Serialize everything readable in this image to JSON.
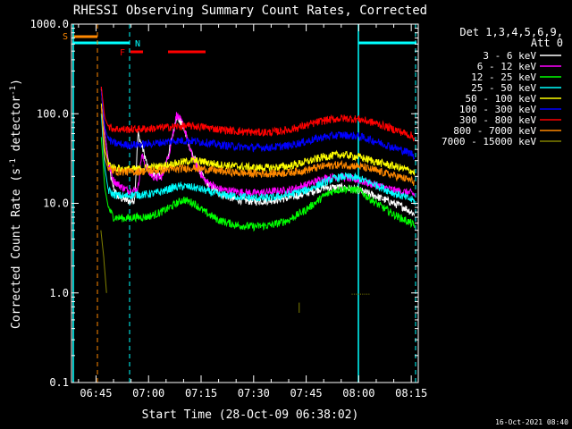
{
  "chart_data": {
    "type": "line",
    "title": "RHESSI Observing Summary Count Rates, Corrected",
    "xlabel": "Start Time (28-Oct-09 06:38:02)",
    "ylabel": "Corrected Count Rate (s",
    "ylabel_sup": "-1",
    "ylabel_mid": " detector",
    "ylabel_sup2": "-1",
    "ylabel_end": ")",
    "y_scale": "log",
    "ylim": [
      0.1,
      1000
    ],
    "xlim_minutes": [
      38.0,
      137.0
    ],
    "grid": false,
    "legend_position": "top-right",
    "legend_title": [
      "Det 1,3,4,5,6,9,",
      "Att 0"
    ],
    "y_ticks": [
      {
        "value": 0.1,
        "label": "0.1"
      },
      {
        "value": 1,
        "label": "1.0"
      },
      {
        "value": 10,
        "label": "10.0"
      },
      {
        "value": 100,
        "label": "100.0"
      },
      {
        "value": 1000,
        "label": "1000.0"
      }
    ],
    "x_ticks": [
      {
        "minute": 45,
        "label": "06:45"
      },
      {
        "minute": 60,
        "label": "07:00"
      },
      {
        "minute": 75,
        "label": "07:15"
      },
      {
        "minute": 90,
        "label": "07:30"
      },
      {
        "minute": 105,
        "label": "07:45"
      },
      {
        "minute": 120,
        "label": "08:00"
      },
      {
        "minute": 135,
        "label": "08:15"
      }
    ],
    "series": [
      {
        "name": "3 - 6 keV",
        "color": "#ffffff",
        "x": [
          46.5,
          47.5,
          48.5,
          49.5,
          51,
          53,
          55,
          56,
          57,
          58,
          59,
          60,
          62,
          64,
          66,
          68,
          70,
          72,
          74,
          76,
          80,
          85,
          90,
          95,
          100,
          105,
          110,
          115,
          120,
          125,
          130,
          133,
          135,
          136
        ],
        "y": [
          190,
          60,
          30,
          17,
          12,
          11,
          10.5,
          11,
          60,
          45,
          33,
          23,
          20,
          21,
          40,
          95,
          70,
          40,
          26,
          18,
          13,
          11,
          10.5,
          10.8,
          11.5,
          13,
          15,
          15,
          14,
          12,
          10,
          9,
          8,
          7.5
        ]
      },
      {
        "name": "6 - 12 keV",
        "color": "#ff00ff",
        "x": [
          46.5,
          47.5,
          48.5,
          50,
          52,
          54,
          56,
          57,
          58,
          60,
          62,
          64,
          66,
          68,
          70,
          72,
          74,
          76,
          80,
          85,
          90,
          95,
          100,
          105,
          110,
          115,
          120,
          125,
          130,
          135,
          136
        ],
        "y": [
          200,
          60,
          28,
          18,
          15.5,
          14,
          14,
          14.5,
          35,
          22,
          19,
          20,
          38,
          98,
          75,
          38,
          25,
          18,
          14.5,
          13.5,
          13,
          13.5,
          14,
          16,
          19,
          20,
          18,
          16,
          14,
          13,
          12.5
        ]
      },
      {
        "name": "12 - 25 keV",
        "color": "#00ff00",
        "x": [
          46.5,
          47.5,
          48.5,
          50,
          53,
          56,
          59,
          62,
          65,
          67,
          70,
          73,
          76,
          80,
          85,
          90,
          95,
          100,
          105,
          110,
          113,
          116,
          120,
          125,
          130,
          135,
          136
        ],
        "y": [
          55,
          15,
          9,
          7,
          6.8,
          7,
          7,
          7.5,
          8.5,
          9.5,
          11,
          10,
          8,
          6.5,
          5.7,
          5.5,
          5.7,
          6.5,
          8.5,
          12,
          14,
          14.5,
          14,
          10,
          7.5,
          6,
          5.5
        ]
      },
      {
        "name": "25 - 50 keV",
        "color": "#00ffff",
        "x": [
          46.5,
          47.5,
          48.5,
          50,
          53,
          56,
          59,
          62,
          65,
          67,
          70,
          73,
          76,
          80,
          85,
          90,
          95,
          100,
          105,
          110,
          113,
          116,
          120,
          125,
          130,
          135,
          136
        ],
        "y": [
          100,
          25,
          14,
          12.5,
          12,
          12.5,
          12.5,
          13,
          14,
          15,
          15.5,
          15,
          14,
          12.5,
          12,
          11.5,
          11.5,
          12.5,
          14,
          17,
          19,
          20,
          19,
          16,
          13,
          11,
          10.5
        ]
      },
      {
        "name": "50 - 100 keV",
        "color": "#ffff00",
        "x": [
          46.5,
          47.5,
          48.5,
          50,
          53,
          56,
          60,
          64,
          68,
          72,
          76,
          80,
          85,
          90,
          95,
          100,
          105,
          110,
          115,
          120,
          125,
          130,
          135,
          136
        ],
        "y": [
          130,
          40,
          28,
          25,
          24,
          24,
          25,
          26,
          28,
          30,
          29,
          27,
          26,
          25,
          25,
          26,
          29,
          33,
          35,
          33,
          29,
          26,
          23,
          22
        ]
      },
      {
        "name": "100 - 300 keV",
        "color": "#0000ff",
        "x": [
          46.5,
          47.5,
          48.5,
          50,
          53,
          56,
          60,
          64,
          68,
          72,
          76,
          80,
          85,
          90,
          95,
          100,
          105,
          110,
          115,
          120,
          125,
          130,
          135,
          136
        ],
        "y": [
          180,
          70,
          52,
          47,
          45,
          45,
          46,
          48,
          50,
          50,
          48,
          45,
          43,
          42,
          42,
          44,
          49,
          55,
          58,
          56,
          49,
          42,
          36,
          34
        ]
      },
      {
        "name": "300 - 800 keV",
        "color": "#ff0000",
        "x": [
          46.5,
          47.5,
          48.5,
          50,
          53,
          56,
          60,
          64,
          68,
          72,
          76,
          80,
          85,
          90,
          95,
          100,
          105,
          110,
          115,
          120,
          125,
          130,
          135,
          136
        ],
        "y": [
          200,
          90,
          72,
          68,
          67,
          67,
          68,
          70,
          72,
          73,
          71,
          67,
          64,
          62,
          62,
          66,
          74,
          84,
          89,
          87,
          78,
          67,
          57,
          53
        ]
      },
      {
        "name": "800 - 7000 keV",
        "color": "#ff8800",
        "x": [
          46.5,
          47.5,
          48.5,
          50,
          53,
          56,
          60,
          64,
          68,
          72,
          76,
          80,
          85,
          90,
          95,
          100,
          105,
          110,
          115,
          120,
          125,
          130,
          135,
          136
        ],
        "y": [
          120,
          32,
          24,
          23,
          22.5,
          22.5,
          23,
          23.5,
          24,
          25,
          24,
          23,
          22,
          21.5,
          21.5,
          22,
          23.5,
          26,
          27,
          26,
          23,
          20.5,
          18,
          17
        ]
      },
      {
        "name": "7000 - 15000 keV",
        "color": "#808000",
        "x": [
          46.4,
          46.8,
          47.2,
          47.6,
          48.0
        ],
        "y": [
          5,
          3.5,
          2.5,
          1.6,
          1.0
        ]
      }
    ],
    "annotations": [
      {
        "label": "S",
        "color": "#ff8800"
      },
      {
        "label": "N",
        "color": "#00ffff"
      },
      {
        "label": "F",
        "color": "#ff0000"
      }
    ],
    "footer_date": "16-Oct-2021 08:40"
  }
}
